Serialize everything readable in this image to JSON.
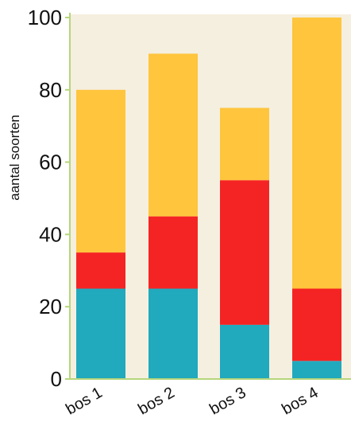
{
  "chart_data": {
    "type": "bar",
    "stacked": true,
    "title": "",
    "xlabel": "",
    "ylabel": "aantal soorten",
    "ylim": [
      0,
      100
    ],
    "yticks": [
      "0",
      "20",
      "40",
      "60",
      "80",
      "100"
    ],
    "categories": [
      "bos 1",
      "bos 2",
      "bos 3",
      "bos 4"
    ],
    "series": [
      {
        "color": "#21a9bd",
        "values": [
          25,
          25,
          15,
          5
        ]
      },
      {
        "color": "#f52424",
        "values": [
          10,
          20,
          40,
          20
        ]
      },
      {
        "color": "#fec53d",
        "values": [
          45,
          45,
          20,
          75
        ]
      }
    ],
    "grid": false,
    "colors": {
      "plot_background": "#f5efe0",
      "axis": "#b6d67c"
    }
  }
}
